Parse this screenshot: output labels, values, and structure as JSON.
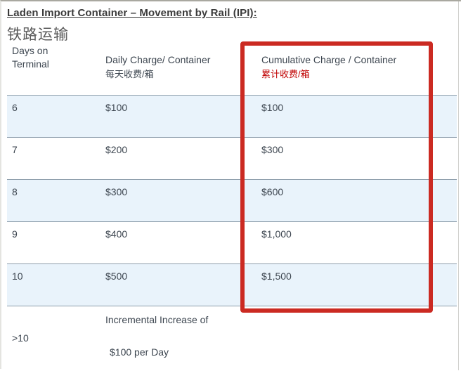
{
  "page": {
    "title": "Laden Import Container – Movement by Rail (IPI):",
    "subtitle_cn": "铁路运输"
  },
  "table": {
    "columns": [
      {
        "label": "Days on Terminal",
        "label_cn": ""
      },
      {
        "label": "Daily Charge/ Container",
        "label_cn": "每天收费/箱"
      },
      {
        "label": "Cumulative Charge / Container",
        "label_cn": "累计收费/箱"
      }
    ],
    "rows": [
      {
        "days": "6",
        "daily": "$100",
        "cumulative": "$100"
      },
      {
        "days": "7",
        "daily": "$200",
        "cumulative": "$300"
      },
      {
        "days": "8",
        "daily": "$300",
        "cumulative": "$600"
      },
      {
        "days": "9",
        "daily": "$400",
        "cumulative": "$1,000"
      },
      {
        "days": "10",
        "daily": "$500",
        "cumulative": "$1,500"
      }
    ],
    "footer_row": {
      "days": ">10",
      "daily_line1": "Incremental Increase of",
      "daily_line2": "$100 per Day"
    }
  },
  "colors": {
    "highlight_box_red": "#cb2a22",
    "cumulative_label_red": "#c00000",
    "alt_row_blue": "#e9f3fb",
    "row_border": "#8d9dab",
    "text": "#3d4650"
  }
}
